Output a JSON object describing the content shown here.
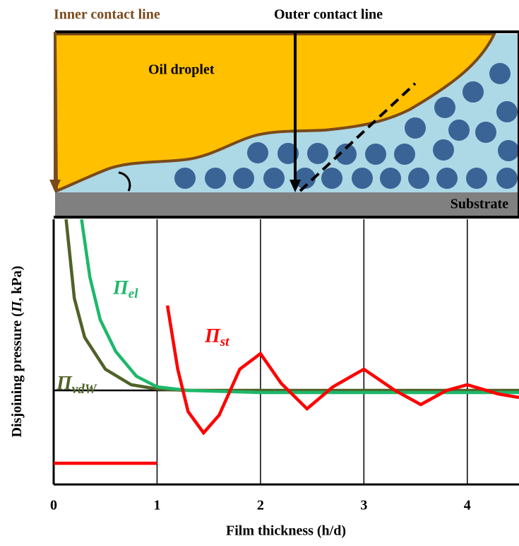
{
  "diagram": {
    "inner_label": "Inner contact line",
    "outer_label": "Outer contact line",
    "droplet_label": "Oil droplet",
    "substrate_label": "Substrate"
  },
  "chart_data": {
    "type": "line",
    "x_label": "Film thickness (h/d)",
    "y_label": [
      "Disjoining pressure (",
      "Π",
      ", kPa)"
    ],
    "xlim": [
      0,
      4.5
    ],
    "xticks": [
      0,
      1,
      2,
      3,
      4
    ],
    "ylim": [
      -1.33,
      2.42
    ],
    "grid": true,
    "series": [
      {
        "label": [
          "Π",
          "vdW"
        ],
        "color": "#4f6228",
        "x": [
          0.12,
          0.2,
          0.3,
          0.5,
          0.75,
          1.0,
          1.3,
          2.0,
          3.0,
          4.5
        ],
        "values": [
          2.42,
          1.3,
          0.75,
          0.3,
          0.08,
          0.02,
          0.0,
          0.0,
          0.0,
          0.0
        ]
      },
      {
        "label": [
          "Π",
          "el"
        ],
        "color": "#1db86a",
        "x": [
          0.27,
          0.35,
          0.45,
          0.6,
          0.8,
          1.0,
          1.3,
          2.0,
          3.0,
          4.5
        ],
        "values": [
          2.42,
          1.6,
          1.0,
          0.55,
          0.2,
          0.05,
          0.0,
          -0.03,
          -0.03,
          -0.03
        ]
      },
      {
        "label": [
          "Π",
          "st"
        ],
        "color": "#ff0000",
        "x": [
          0,
          1,
          1,
          1.1,
          1.2,
          1.3,
          1.45,
          1.6,
          1.8,
          2.0,
          2.2,
          2.45,
          2.7,
          3.0,
          3.3,
          3.55,
          3.8,
          4.0,
          4.3,
          4.5
        ],
        "values": [
          -1.03,
          -1.03,
          null,
          1.2,
          0.3,
          -0.3,
          -0.6,
          -0.35,
          0.3,
          0.52,
          0.1,
          -0.26,
          0.05,
          0.3,
          0.0,
          -0.2,
          0.0,
          0.08,
          -0.05,
          -0.1
        ]
      }
    ]
  }
}
